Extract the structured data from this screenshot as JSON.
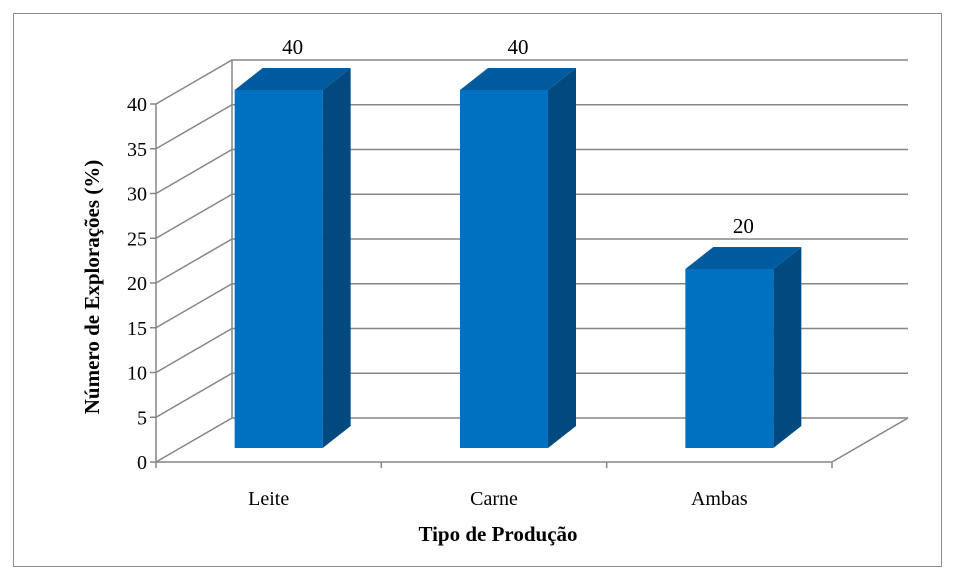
{
  "chart_data": {
    "type": "bar",
    "categories": [
      "Leite",
      "Carne",
      "Ambas"
    ],
    "values": [
      40,
      40,
      20
    ],
    "data_labels": [
      "40",
      "40",
      "20"
    ],
    "xlabel": "Tipo de Produção",
    "ylabel": "Número de Explorações (%)",
    "ylim": [
      0,
      40
    ],
    "yticks": [
      0,
      5,
      10,
      15,
      20,
      25,
      30,
      35,
      40
    ],
    "ytick_labels": [
      "0",
      "5",
      "10",
      "15",
      "20",
      "25",
      "30",
      "35",
      "40"
    ],
    "grid": true,
    "legend": "none",
    "style": "3d-column",
    "colors": {
      "bar_front": "#0070C0",
      "bar_side": "#004A80",
      "bar_top": "#005A9E",
      "grid": "#868686"
    }
  }
}
